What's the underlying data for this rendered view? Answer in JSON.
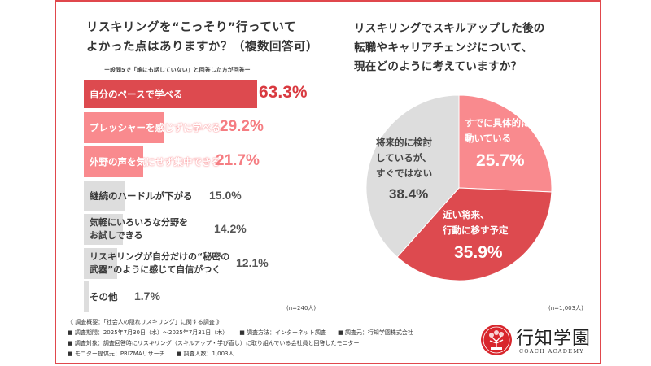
{
  "colors": {
    "frame": "#e0474c",
    "dark_red": "#dd4a4f",
    "pink": "#f98a8e",
    "gray": "#dddddd",
    "text_dark": "#333333",
    "value_red": "#d93a40",
    "value_pink": "#f57d82",
    "value_gray": "#555555"
  },
  "chart_data": [
    {
      "type": "bar",
      "orientation": "horizontal",
      "title": "リスキリングを“こっそり”行っていてよかった点はありますか？（複数回答可）",
      "title_lines": [
        "リスキリングを“こっそり”行っていて",
        "よかった点はありますか？（複数回答可）"
      ],
      "subtitle": "ー設問5で「誰にも話していない」と回答した方が回答ー",
      "unit": "%",
      "categories": [
        "自分のペースで学べる",
        "プレッシャーを感じずに学べる",
        "外野の声を気にせず集中できる",
        "継続のハードルが下がる",
        "気軽にいろいろな分野をお試しできる",
        "リスキリングが自分だけの“秘密の武器”のように感じて自信がつく",
        "その他"
      ],
      "category_lines": [
        [
          "自分のペースで学べる"
        ],
        [
          "プレッシャーを感じずに学べる"
        ],
        [
          "外野の声を気にせず集中できる"
        ],
        [
          "継続のハードルが下がる"
        ],
        [
          "気軽にいろいろな分野を",
          "お試しできる"
        ],
        [
          "リスキリングが自分だけの“秘密の",
          "武器”のように感じて自信がつく"
        ],
        [
          "その他"
        ]
      ],
      "values": [
        63.3,
        29.2,
        21.7,
        15.0,
        14.2,
        12.1,
        1.7
      ],
      "value_labels": [
        "63.3%",
        "29.2%",
        "21.7%",
        "15.0%",
        "14.2%",
        "12.1%",
        "1.7%"
      ],
      "xlim": [
        0,
        100
      ],
      "grid": false,
      "sample": "(n=240人)"
    },
    {
      "type": "pie",
      "title": "リスキリングでスキルアップした後の転職やキャリアチェンジについて、現在どのように考えていますか？",
      "title_lines": [
        "リスキリングでスキルアップした後の",
        "転職やキャリアチェンジについて、",
        "現在どのように考えていますか？"
      ],
      "slices": [
        {
          "label": "すでに具体的に動いている",
          "label_lines": [
            "すでに具体的に",
            "動いている"
          ],
          "value": 25.7,
          "value_label": "25.7%"
        },
        {
          "label": "近い将来、行動に移す予定",
          "label_lines": [
            "近い将来、",
            "行動に移す予定"
          ],
          "value": 35.9,
          "value_label": "35.9%"
        },
        {
          "label": "将来的に検討しているが、すぐではない",
          "label_lines": [
            "将来的に検討",
            "しているが、",
            "すぐではない"
          ],
          "value": 38.4,
          "value_label": "38.4%"
        }
      ],
      "start": "top, clockwise",
      "sample": "(n=1,003人)"
    }
  ],
  "footer": {
    "heading": "《 調査概要：「社会人の隠れリスキリング」に関する調査 》",
    "rows": [
      [
        "■ 調査期間：2025年7月30日（水）〜2025年7月31日（木）",
        "■ 調査方法：インターネット調査",
        "■ 調査元：行知学園株式会社"
      ],
      [
        "■ 調査対象：調査回答時にリスキリング（スキルアップ・学び直し）に取り組んでいる会社員と回答したモニター"
      ],
      [
        "■ モニター提供元：PRIZMAリサーチ",
        "■ 調査人数：1,003人"
      ]
    ]
  },
  "logo": {
    "name": "行知学園",
    "sub": "COACH ACADEMY",
    "icon": "tree-emblem-icon"
  }
}
